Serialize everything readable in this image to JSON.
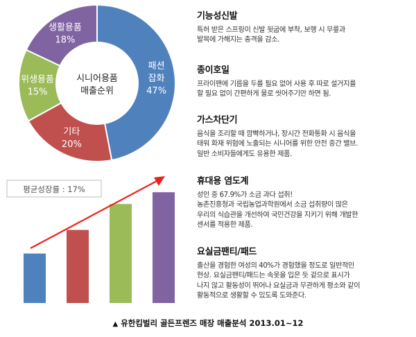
{
  "chart_data": [
    {
      "type": "pie",
      "variant": "donut",
      "center_label": [
        "시니어용품",
        "매출순위"
      ],
      "slices": [
        {
          "label": [
            "패션",
            "잡화"
          ],
          "value": 47,
          "value_label": "47%",
          "color": "#4f81bd"
        },
        {
          "label": [
            "기타"
          ],
          "value": 20,
          "value_label": "20%",
          "color": "#c0504d"
        },
        {
          "label": [
            "위생용품"
          ],
          "value": 15,
          "value_label": "15%",
          "color": "#9bbb59"
        },
        {
          "label": [
            "생활용품"
          ],
          "value": 18,
          "value_label": "18%",
          "color": "#8064a2"
        }
      ]
    },
    {
      "type": "bar",
      "annotation": "평균성장률 : 17%",
      "trend_arrow": true,
      "series": [
        {
          "values": [
            42,
            62,
            84,
            94
          ],
          "colors": [
            "#4f81bd",
            "#c0504d",
            "#9bbb59",
            "#8064a2"
          ]
        }
      ],
      "ylim": [
        0,
        100
      ]
    }
  ],
  "products": [
    {
      "title": "기능성신발",
      "desc": "특허 받은 스프링이 신발 뒷굽에 부착, 보행 시 무릎과\n발목에 가해지는 충격을 감소."
    },
    {
      "title": "종이호일",
      "desc": "프라이팬에 기름을 두를 필요 없어 사용 후 따로 설거지를\n할 필요 없이 간편하게 물로 씻어주기만 하면 됨."
    },
    {
      "title": "가스차단기",
      "desc": "음식을 조리할 때 깜빡하거나, 장시간 전화통화 시 음식을\n태워 화재 위험에 노출되는 시니어를 위한 안전 중간 밸브.\n일반 소비자들에게도 유용한 제품."
    },
    {
      "title": "휴대용 염도계",
      "desc": "성인 중 67.9%가 소금 과다 섭취!\n농촌진흥청과 국립농업과학원에서 소금 섭취량이 많은\n우리의 식습관을 개선하여 국민건강을 지키기 위해 개발한\n센서를 적용한 제품."
    },
    {
      "title": "요실금팬티/패드",
      "desc": "출산을 경험한 여성의 40%가 경험했을 정도로 일반적인\n현상. 요실금팬티/패드는 속옷을 입은 듯 겉으로 표시가\n나지 않고 활동성이 뛰어나 요실금과 무관하게 평소와 같이\n활동적으로 생활할 수 있도록 도와준다."
    }
  ],
  "caption": {
    "marker": "▲",
    "text": "유한킴벌리 골든프렌즈 매장 매출분석 2013.01~12"
  }
}
